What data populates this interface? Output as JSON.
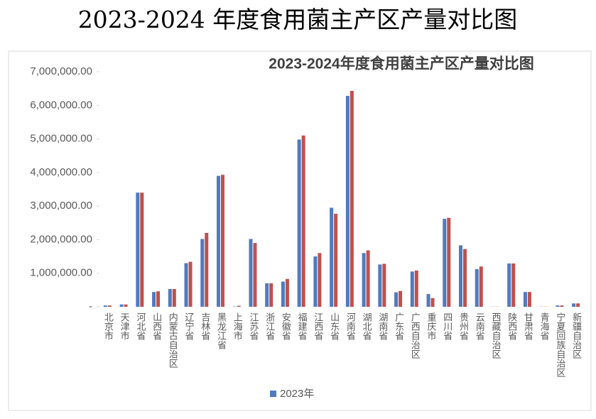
{
  "heading": "2023-2024 年度食用菌主产区产量对比图",
  "chart_data": {
    "type": "bar",
    "title": "2023-2024年度食用菌主产区产量对比图",
    "categories": [
      "北京市",
      "天津市",
      "河北省",
      "山西省",
      "内蒙古自治区",
      "辽宁省",
      "吉林省",
      "黑龙江省",
      "上海市",
      "江苏省",
      "浙江省",
      "安徽省",
      "福建省",
      "江西省",
      "山东省",
      "河南省",
      "湖北省",
      "湖南省",
      "广东省",
      "广西自治区",
      "重庆市",
      "四川省",
      "贵州省",
      "云南省",
      "西藏自治区",
      "陕西省",
      "甘肃省",
      "青海省",
      "宁夏回族自治区",
      "新疆自治区"
    ],
    "series": [
      {
        "name": "2023年",
        "color": "#4f7bbf",
        "values": [
          40000,
          70000,
          3400000,
          440000,
          530000,
          1300000,
          2020000,
          3900000,
          10000,
          2020000,
          700000,
          750000,
          4980000,
          1500000,
          2950000,
          6280000,
          1600000,
          1260000,
          430000,
          1050000,
          380000,
          2620000,
          1830000,
          1120000,
          5000,
          1290000,
          440000,
          5000,
          40000,
          100000
        ]
      },
      {
        "color": "#c0504d",
        "values": [
          40000,
          70000,
          3400000,
          460000,
          530000,
          1340000,
          2200000,
          3930000,
          30000,
          1900000,
          700000,
          830000,
          5100000,
          1600000,
          2770000,
          6430000,
          1680000,
          1280000,
          470000,
          1080000,
          260000,
          2650000,
          1720000,
          1200000,
          5000,
          1290000,
          440000,
          5000,
          40000,
          100000
        ]
      }
    ],
    "ylim": [
      0,
      7000000
    ],
    "yticks": [
      {
        "value": 0,
        "label": "-"
      },
      {
        "value": 1000000,
        "label": "1,000,000.00"
      },
      {
        "value": 2000000,
        "label": "2,000,000.00"
      },
      {
        "value": 3000000,
        "label": "3,000,000.00"
      },
      {
        "value": 4000000,
        "label": "4,000,000.00"
      },
      {
        "value": 5000000,
        "label": "5,000,000.00"
      },
      {
        "value": 6000000,
        "label": "6,000,000.00"
      },
      {
        "value": 7000000,
        "label": "7,000,000.00"
      }
    ],
    "grid": false
  }
}
